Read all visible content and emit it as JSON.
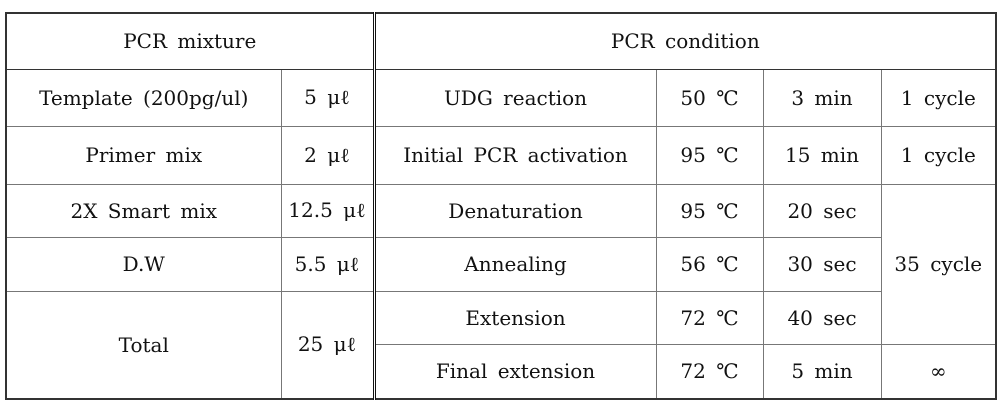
{
  "mixture": {
    "header": "PCR mixture",
    "rows": [
      [
        "Template (200pg/ul)",
        "5 μℓ"
      ],
      [
        "Primer mix",
        "2 μℓ"
      ],
      [
        "2X Smart mix",
        "12.5 μℓ"
      ],
      [
        "D.W",
        "5.5 μℓ"
      ],
      [
        "Total",
        "25 μℓ"
      ]
    ]
  },
  "condition": {
    "header": "PCR condition",
    "rows": [
      [
        "UDG reaction",
        "50 ℃",
        "3 min"
      ],
      [
        "Initial PCR activation",
        "95 ℃",
        "15 min"
      ],
      [
        "Denaturation",
        "95 ℃",
        "20 sec"
      ],
      [
        "Annealing",
        "56 ℃",
        "30 sec"
      ],
      [
        "Extension",
        "72 ℃",
        "40 sec"
      ],
      [
        "Final extension",
        "72 ℃",
        "5 min"
      ]
    ],
    "cycles": [
      "1 cycle",
      "1 cycle",
      "35 cycle",
      "∞"
    ]
  }
}
